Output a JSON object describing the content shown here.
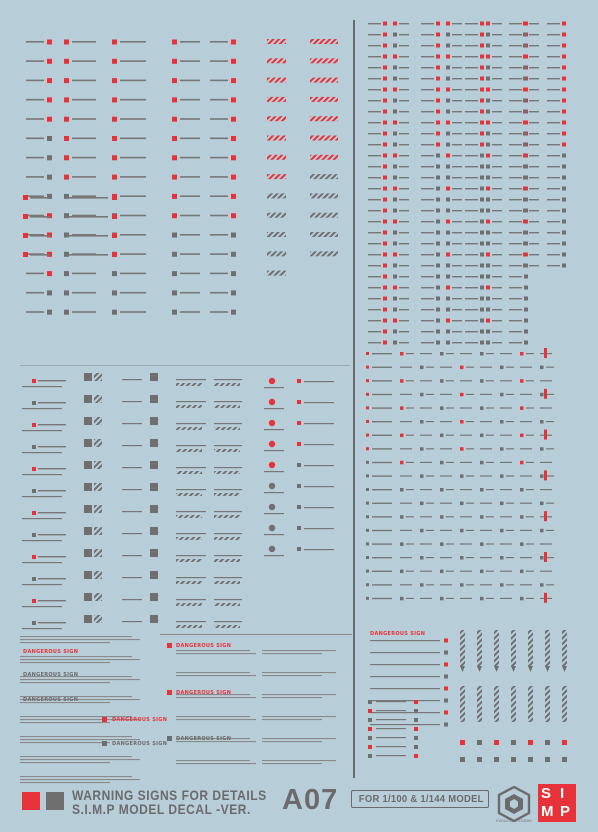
{
  "sheet": {
    "background": "#b7cdd8",
    "accent_red": "#e8323a",
    "accent_grey": "#6f6f6f"
  },
  "signs": {
    "dangerous": "DANGEROUS SIGN"
  },
  "footer": {
    "title_line_1": "WARNING SIGNS FOR DETAILS",
    "title_line_2": "S.I.M.P MODEL DECAL -VER.",
    "code": "A07",
    "scale": "FOR 1/100 & 1/144 MODEL",
    "studio": "EVOLUTION STUDIO",
    "brand": {
      "s": "S",
      "i": "I",
      "m": "M",
      "p": "P"
    }
  }
}
